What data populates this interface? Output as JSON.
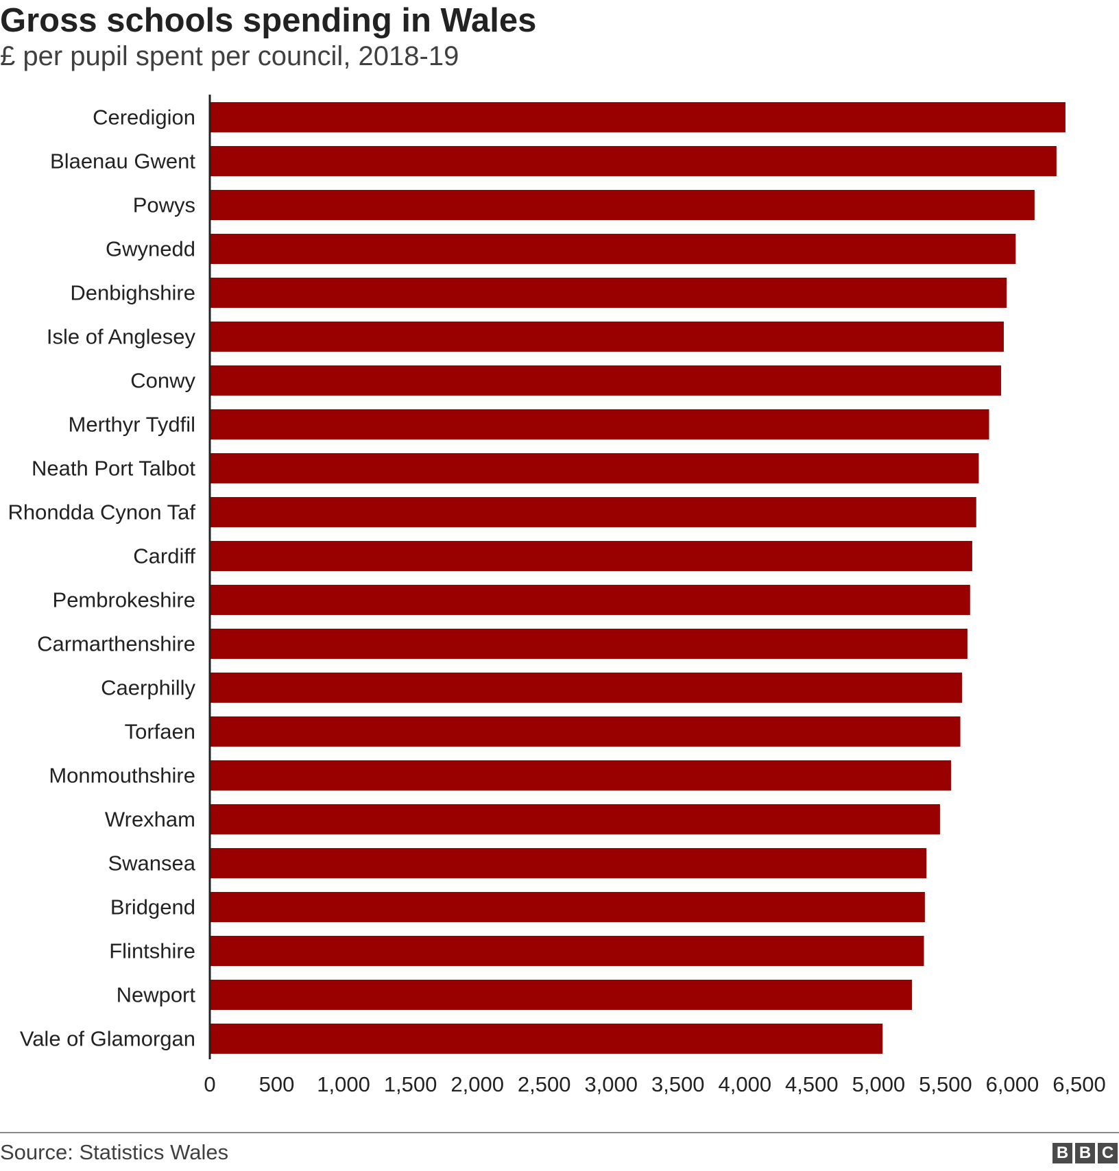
{
  "title": "Gross schools spending in Wales",
  "subtitle": "£ per pupil spent per council, 2018-19",
  "source": "Source: Statistics Wales",
  "logo": [
    "B",
    "B",
    "C"
  ],
  "colors": {
    "bar": "#990000",
    "axis": "#222222",
    "text": "#222222"
  },
  "chart_data": {
    "type": "bar",
    "orientation": "horizontal",
    "title": "Gross schools spending in Wales",
    "subtitle": "£ per pupil spent per council, 2018-19",
    "xlabel": "",
    "ylabel": "",
    "xlim": [
      0,
      6500
    ],
    "grid": false,
    "categories": [
      "Ceredigion",
      "Blaenau Gwent",
      "Powys",
      "Gwynedd",
      "Denbighshire",
      "Isle of Anglesey",
      "Conwy",
      "Merthyr Tydfil",
      "Neath Port Talbot",
      "Rhondda Cynon Taf",
      "Cardiff",
      "Pembrokeshire",
      "Carmarthenshire",
      "Caerphilly",
      "Torfaen",
      "Monmouthshire",
      "Wrexham",
      "Swansea",
      "Bridgend",
      "Flintshire",
      "Newport",
      "Vale of Glamorgan"
    ],
    "values": [
      6397,
      6330,
      6166,
      6025,
      5958,
      5936,
      5916,
      5826,
      5749,
      5730,
      5700,
      5684,
      5664,
      5624,
      5611,
      5542,
      5459,
      5358,
      5346,
      5339,
      5250,
      5030
    ],
    "ticks": [
      "0",
      "500",
      "1,000",
      "1,500",
      "2,000",
      "2,500",
      "3,000",
      "3,500",
      "4,000",
      "4,500",
      "5,000",
      "5,500",
      "6,000",
      "6,500"
    ],
    "tick_values": [
      0,
      500,
      1000,
      1500,
      2000,
      2500,
      3000,
      3500,
      4000,
      4500,
      5000,
      5500,
      6000,
      6500
    ]
  }
}
